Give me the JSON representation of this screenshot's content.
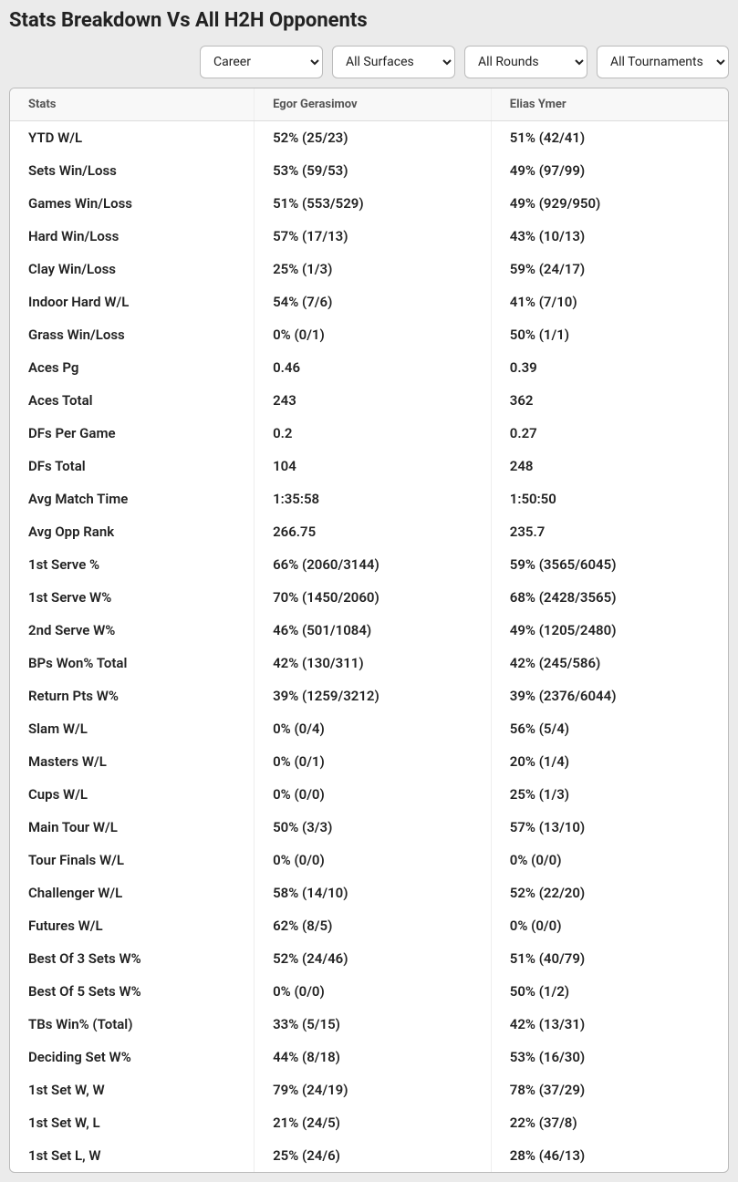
{
  "title": "Stats Breakdown Vs All H2H Opponents",
  "filters": {
    "career": "Career",
    "surfaces": "All Surfaces",
    "rounds": "All Rounds",
    "tournaments": "All Tournaments"
  },
  "columns": {
    "stats": "Stats",
    "player1": "Egor Gerasimov",
    "player2": "Elias Ymer"
  },
  "rows": [
    {
      "stat": "YTD W/L",
      "p1": "52% (25/23)",
      "p2": "51% (42/41)"
    },
    {
      "stat": "Sets Win/Loss",
      "p1": "53% (59/53)",
      "p2": "49% (97/99)"
    },
    {
      "stat": "Games Win/Loss",
      "p1": "51% (553/529)",
      "p2": "49% (929/950)"
    },
    {
      "stat": "Hard Win/Loss",
      "p1": "57% (17/13)",
      "p2": "43% (10/13)"
    },
    {
      "stat": "Clay Win/Loss",
      "p1": "25% (1/3)",
      "p2": "59% (24/17)"
    },
    {
      "stat": "Indoor Hard W/L",
      "p1": "54% (7/6)",
      "p2": "41% (7/10)"
    },
    {
      "stat": "Grass Win/Loss",
      "p1": "0% (0/1)",
      "p2": "50% (1/1)"
    },
    {
      "stat": "Aces Pg",
      "p1": "0.46",
      "p2": "0.39"
    },
    {
      "stat": "Aces Total",
      "p1": "243",
      "p2": "362"
    },
    {
      "stat": "DFs Per Game",
      "p1": "0.2",
      "p2": "0.27"
    },
    {
      "stat": "DFs Total",
      "p1": "104",
      "p2": "248"
    },
    {
      "stat": "Avg Match Time",
      "p1": "1:35:58",
      "p2": "1:50:50"
    },
    {
      "stat": "Avg Opp Rank",
      "p1": "266.75",
      "p2": "235.7"
    },
    {
      "stat": "1st Serve %",
      "p1": "66% (2060/3144)",
      "p2": "59% (3565/6045)"
    },
    {
      "stat": "1st Serve W%",
      "p1": "70% (1450/2060)",
      "p2": "68% (2428/3565)"
    },
    {
      "stat": "2nd Serve W%",
      "p1": "46% (501/1084)",
      "p2": "49% (1205/2480)"
    },
    {
      "stat": "BPs Won% Total",
      "p1": "42% (130/311)",
      "p2": "42% (245/586)"
    },
    {
      "stat": "Return Pts W%",
      "p1": "39% (1259/3212)",
      "p2": "39% (2376/6044)"
    },
    {
      "stat": "Slam W/L",
      "p1": "0% (0/4)",
      "p2": "56% (5/4)"
    },
    {
      "stat": "Masters W/L",
      "p1": "0% (0/1)",
      "p2": "20% (1/4)"
    },
    {
      "stat": "Cups W/L",
      "p1": "0% (0/0)",
      "p2": "25% (1/3)"
    },
    {
      "stat": "Main Tour W/L",
      "p1": "50% (3/3)",
      "p2": "57% (13/10)"
    },
    {
      "stat": "Tour Finals W/L",
      "p1": "0% (0/0)",
      "p2": "0% (0/0)"
    },
    {
      "stat": "Challenger W/L",
      "p1": "58% (14/10)",
      "p2": "52% (22/20)"
    },
    {
      "stat": "Futures W/L",
      "p1": "62% (8/5)",
      "p2": "0% (0/0)"
    },
    {
      "stat": "Best Of 3 Sets W%",
      "p1": "52% (24/46)",
      "p2": "51% (40/79)"
    },
    {
      "stat": "Best Of 5 Sets W%",
      "p1": "0% (0/0)",
      "p2": "50% (1/2)"
    },
    {
      "stat": "TBs Win% (Total)",
      "p1": "33% (5/15)",
      "p2": "42% (13/31)"
    },
    {
      "stat": "Deciding Set W%",
      "p1": "44% (8/18)",
      "p2": "53% (16/30)"
    },
    {
      "stat": "1st Set W, W",
      "p1": "79% (24/19)",
      "p2": "78% (37/29)"
    },
    {
      "stat": "1st Set W, L",
      "p1": "21% (24/5)",
      "p2": "22% (37/8)"
    },
    {
      "stat": "1st Set L, W",
      "p1": "25% (24/6)",
      "p2": "28% (46/13)"
    }
  ]
}
